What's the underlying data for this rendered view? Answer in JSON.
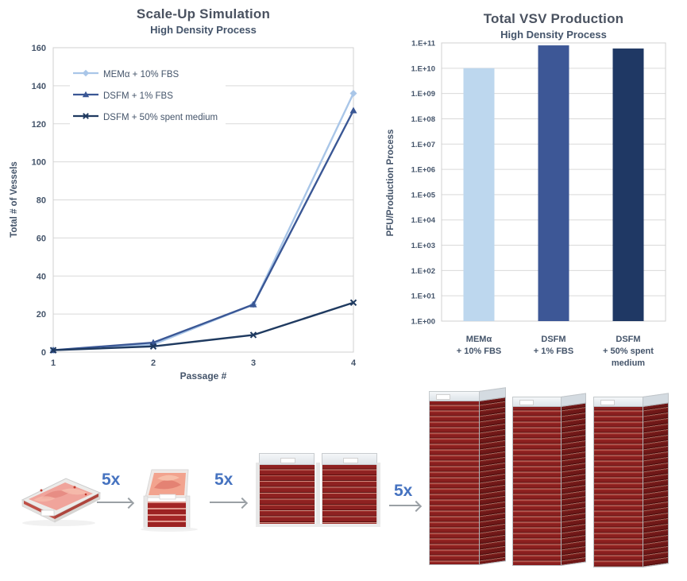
{
  "figure": {
    "panels": [
      "scale-up-line-chart",
      "vsv-production-bar-chart",
      "vessel-scale-up-flow"
    ]
  },
  "chart_data": [
    {
      "type": "line",
      "title": "Scale-Up Simulation",
      "subtitle": "High Density Process",
      "xlabel": "Passage #",
      "ylabel": "Total # of Vessels",
      "x": [
        1,
        2,
        3,
        4
      ],
      "x_tick_labels": [
        "1",
        "2",
        "3",
        "4"
      ],
      "y_tick_labels": [
        "0",
        "20",
        "40",
        "60",
        "80",
        "100",
        "120",
        "140",
        "160"
      ],
      "ylim": [
        0,
        160
      ],
      "grid": "horizontal",
      "legend_position": "inside-top-left",
      "series": [
        {
          "name": "MEMα + 10% FBS",
          "marker": "diamond",
          "color": "#A9C6E8",
          "values": [
            1,
            4,
            25,
            136
          ]
        },
        {
          "name": "DSFM + 1% FBS",
          "marker": "triangle",
          "color": "#3A5795",
          "values": [
            1,
            5,
            25,
            127
          ]
        },
        {
          "name": "DSFM + 50% spent medium",
          "marker": "x",
          "color": "#1F3A60",
          "values": [
            1,
            3,
            9,
            26
          ]
        }
      ]
    },
    {
      "type": "bar",
      "title": "Total VSV Production",
      "subtitle": "High Density Process",
      "ylabel": "PFU/Production Process",
      "categories": [
        "MEMα\n+ 10% FBS",
        "DSFM\n+ 1% FBS",
        "DSFM\n+ 50% spent\nmedium"
      ],
      "values": [
        10000000000,
        80000000000,
        60000000000
      ],
      "bar_colors": [
        "#BDD7EE",
        "#3D5796",
        "#1F3864"
      ],
      "y_scale": "log10",
      "ylim_exponents": [
        0,
        11
      ],
      "y_tick_labels": [
        "1.E+11",
        "1.E+10",
        "1.E+09",
        "1.E+08",
        "1.E+07",
        "1.E+06",
        "1.E+05",
        "1.E+04",
        "1.E+03",
        "1.E+02",
        "1.E+01",
        "1.E+00"
      ],
      "grid": "horizontal"
    }
  ],
  "process_flow": {
    "steps": [
      {
        "vessel": "single-layer cell stack tray"
      },
      {
        "vessel": "five-layer cell stack"
      },
      {
        "vessel": "two ten-layer cell stacks"
      },
      {
        "vessel": "three forty-layer cell stacks"
      }
    ],
    "multipliers": [
      "5x",
      "5x",
      "5x"
    ]
  },
  "theme": {
    "background": "#FFFFFF",
    "text_color": "#44546A",
    "title_color": "#4A5260",
    "grid_color": "#D9D9D9",
    "plot_border_color": "#D0D0D0",
    "multiplier_color": "#4673C0",
    "arrow_color": "#9AA0A5"
  }
}
